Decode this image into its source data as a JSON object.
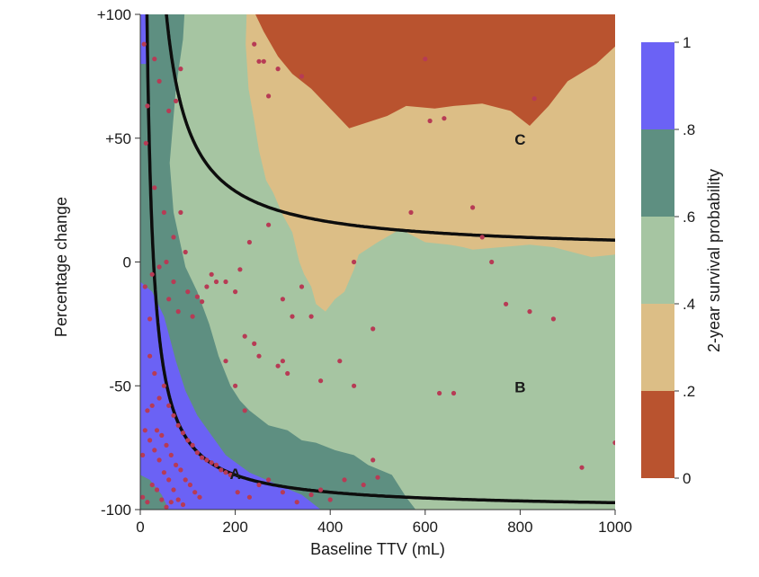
{
  "chart_data": {
    "type": "heatmap",
    "xlabel": "Baseline TTV (mL)",
    "ylabel": "Percentage change",
    "colorbar_label": "2-year survival probability",
    "xlim": [
      0,
      1000
    ],
    "ylim": [
      -100,
      100
    ],
    "x_ticks": [
      {
        "value": 0,
        "label": "0"
      },
      {
        "value": 200,
        "label": "200"
      },
      {
        "value": 400,
        "label": "400"
      },
      {
        "value": 600,
        "label": "600"
      },
      {
        "value": 800,
        "label": "800"
      },
      {
        "value": 1000,
        "label": "1000"
      }
    ],
    "y_ticks": [
      {
        "value": -100,
        "label": "-100"
      },
      {
        "value": -50,
        "label": "-50"
      },
      {
        "value": 0,
        "label": "0"
      },
      {
        "value": 50,
        "label": "+50"
      },
      {
        "value": 100,
        "label": "+100"
      }
    ],
    "colorbar": {
      "bands": [
        {
          "from": 0,
          "to": 0.2,
          "color": "#b9532f"
        },
        {
          "from": 0.2,
          "to": 0.4,
          "color": "#dcbe86"
        },
        {
          "from": 0.4,
          "to": 0.6,
          "color": "#a6c5a2"
        },
        {
          "from": 0.6,
          "to": 0.8,
          "color": "#5e8f81"
        },
        {
          "from": 0.8,
          "to": 1,
          "color": "#6b62f5"
        }
      ],
      "ticks": [
        {
          "value": 0,
          "label": "0"
        },
        {
          "value": 0.2,
          "label": ".2"
        },
        {
          "value": 0.4,
          "label": ".4"
        },
        {
          "value": 0.6,
          "label": ".6"
        },
        {
          "value": 0.8,
          "label": ".8"
        },
        {
          "value": 1,
          "label": "1"
        }
      ]
    },
    "region_labels": [
      {
        "text": "A",
        "x": 200,
        "y": -86
      },
      {
        "text": "B",
        "x": 800,
        "y": -51
      },
      {
        "text": "C",
        "x": 800,
        "y": 49
      }
    ],
    "contours": [
      {
        "level": "0-0.2",
        "color": "#b9532f",
        "points": [
          [
            228,
            107
          ],
          [
            420,
            107
          ],
          [
            420,
            60
          ],
          [
            1000,
            60
          ],
          [
            1000,
            112
          ],
          [
            680,
            112
          ],
          [
            600,
            104
          ],
          [
            530,
            100
          ],
          [
            470,
            100
          ],
          [
            430,
            74
          ],
          [
            300,
            75
          ],
          [
            230,
            100
          ]
        ]
      },
      {
        "level": "0-0.2 upper",
        "color": "#b9532f",
        "points": [
          [
            228,
            107
          ],
          [
            1000,
            107
          ],
          [
            1000,
            87
          ],
          [
            960,
            80
          ],
          [
            870,
            69
          ],
          [
            820,
            55
          ],
          [
            720,
            63
          ],
          [
            650,
            64
          ],
          [
            570,
            63
          ],
          [
            540,
            62
          ],
          [
            440,
            54
          ],
          [
            370,
            69
          ],
          [
            300,
            78
          ],
          [
            245,
            88
          ],
          [
            228,
            104
          ]
        ]
      },
      {
        "level": "0.8-1 top",
        "color": "#6b62f5",
        "points": [
          [
            0,
            107
          ],
          [
            18,
            107
          ],
          [
            18,
            80
          ],
          [
            0,
            80
          ]
        ]
      },
      {
        "level": "0.8-1 bottom",
        "color": "#6b62f5",
        "points": [
          [
            0,
            -9
          ],
          [
            30,
            -15
          ],
          [
            65,
            -30
          ],
          [
            100,
            -55
          ],
          [
            160,
            -76
          ],
          [
            240,
            -86
          ],
          [
            300,
            -90
          ],
          [
            390,
            -100
          ],
          [
            0,
            -100
          ]
        ]
      }
    ],
    "threshold_curves": [
      {
        "k": 1000,
        "offset": 0
      },
      {
        "k": 4000,
        "offset": 0
      }
    ],
    "scatter_points": [
      [
        8,
        88
      ],
      [
        30,
        82
      ],
      [
        40,
        73
      ],
      [
        60,
        61
      ],
      [
        75,
        65
      ],
      [
        85,
        78
      ],
      [
        15,
        63
      ],
      [
        12,
        48
      ],
      [
        30,
        30
      ],
      [
        50,
        20
      ],
      [
        55,
        0
      ],
      [
        70,
        10
      ],
      [
        85,
        20
      ],
      [
        95,
        4
      ],
      [
        10,
        -10
      ],
      [
        20,
        -23
      ],
      [
        25,
        -5
      ],
      [
        40,
        -2
      ],
      [
        60,
        -15
      ],
      [
        70,
        -8
      ],
      [
        80,
        -20
      ],
      [
        100,
        -12
      ],
      [
        110,
        -22
      ],
      [
        120,
        -14
      ],
      [
        140,
        -10
      ],
      [
        160,
        -8
      ],
      [
        180,
        -8
      ],
      [
        200,
        -12
      ],
      [
        220,
        -30
      ],
      [
        240,
        -33
      ],
      [
        150,
        -5
      ],
      [
        250,
        -38
      ],
      [
        130,
        -16
      ],
      [
        20,
        -38
      ],
      [
        30,
        -45
      ],
      [
        40,
        -55
      ],
      [
        50,
        -50
      ],
      [
        60,
        -58
      ],
      [
        70,
        -62
      ],
      [
        80,
        -66
      ],
      [
        90,
        -69
      ],
      [
        100,
        -72
      ],
      [
        110,
        -74
      ],
      [
        120,
        -77
      ],
      [
        130,
        -79
      ],
      [
        140,
        -80
      ],
      [
        150,
        -81
      ],
      [
        160,
        -82
      ],
      [
        170,
        -84
      ],
      [
        180,
        -85
      ],
      [
        190,
        -86
      ],
      [
        10,
        -68
      ],
      [
        20,
        -72
      ],
      [
        30,
        -76
      ],
      [
        40,
        -80
      ],
      [
        50,
        -85
      ],
      [
        60,
        -88
      ],
      [
        70,
        -92
      ],
      [
        80,
        -96
      ],
      [
        90,
        -98
      ],
      [
        5,
        -95
      ],
      [
        15,
        -97
      ],
      [
        25,
        -90
      ],
      [
        35,
        -92
      ],
      [
        45,
        -96
      ],
      [
        55,
        -99
      ],
      [
        65,
        -97
      ],
      [
        15,
        -60
      ],
      [
        25,
        -58
      ],
      [
        35,
        -68
      ],
      [
        45,
        -70
      ],
      [
        55,
        -74
      ],
      [
        65,
        -78
      ],
      [
        75,
        -82
      ],
      [
        85,
        -84
      ],
      [
        95,
        -88
      ],
      [
        105,
        -90
      ],
      [
        115,
        -93
      ],
      [
        125,
        -95
      ],
      [
        5,
        -78
      ],
      [
        205,
        -93
      ],
      [
        230,
        -95
      ],
      [
        250,
        -90
      ],
      [
        270,
        -88
      ],
      [
        300,
        -93
      ],
      [
        330,
        -97
      ],
      [
        360,
        -94
      ],
      [
        380,
        -92
      ],
      [
        400,
        -96
      ],
      [
        430,
        -88
      ],
      [
        470,
        -90
      ],
      [
        500,
        -87
      ],
      [
        490,
        -80
      ],
      [
        300,
        -40
      ],
      [
        290,
        -42
      ],
      [
        310,
        -45
      ],
      [
        320,
        -22
      ],
      [
        360,
        -22
      ],
      [
        340,
        -10
      ],
      [
        380,
        -48
      ],
      [
        420,
        -40
      ],
      [
        450,
        -50
      ],
      [
        490,
        -27
      ],
      [
        300,
        -15
      ],
      [
        220,
        -60
      ],
      [
        200,
        -50
      ],
      [
        180,
        -40
      ],
      [
        240,
        88
      ],
      [
        250,
        81
      ],
      [
        260,
        81
      ],
      [
        270,
        67
      ],
      [
        290,
        78
      ],
      [
        340,
        75
      ],
      [
        450,
        108
      ],
      [
        600,
        82
      ],
      [
        610,
        57
      ],
      [
        640,
        58
      ],
      [
        830,
        66
      ],
      [
        570,
        20
      ],
      [
        700,
        22
      ],
      [
        720,
        10
      ],
      [
        740,
        0
      ],
      [
        770,
        -17
      ],
      [
        820,
        -20
      ],
      [
        870,
        -23
      ],
      [
        930,
        -83
      ],
      [
        1000,
        -73
      ],
      [
        630,
        -53
      ],
      [
        660,
        -53
      ],
      [
        450,
        0
      ],
      [
        270,
        15
      ],
      [
        230,
        8
      ],
      [
        210,
        -3
      ]
    ]
  }
}
